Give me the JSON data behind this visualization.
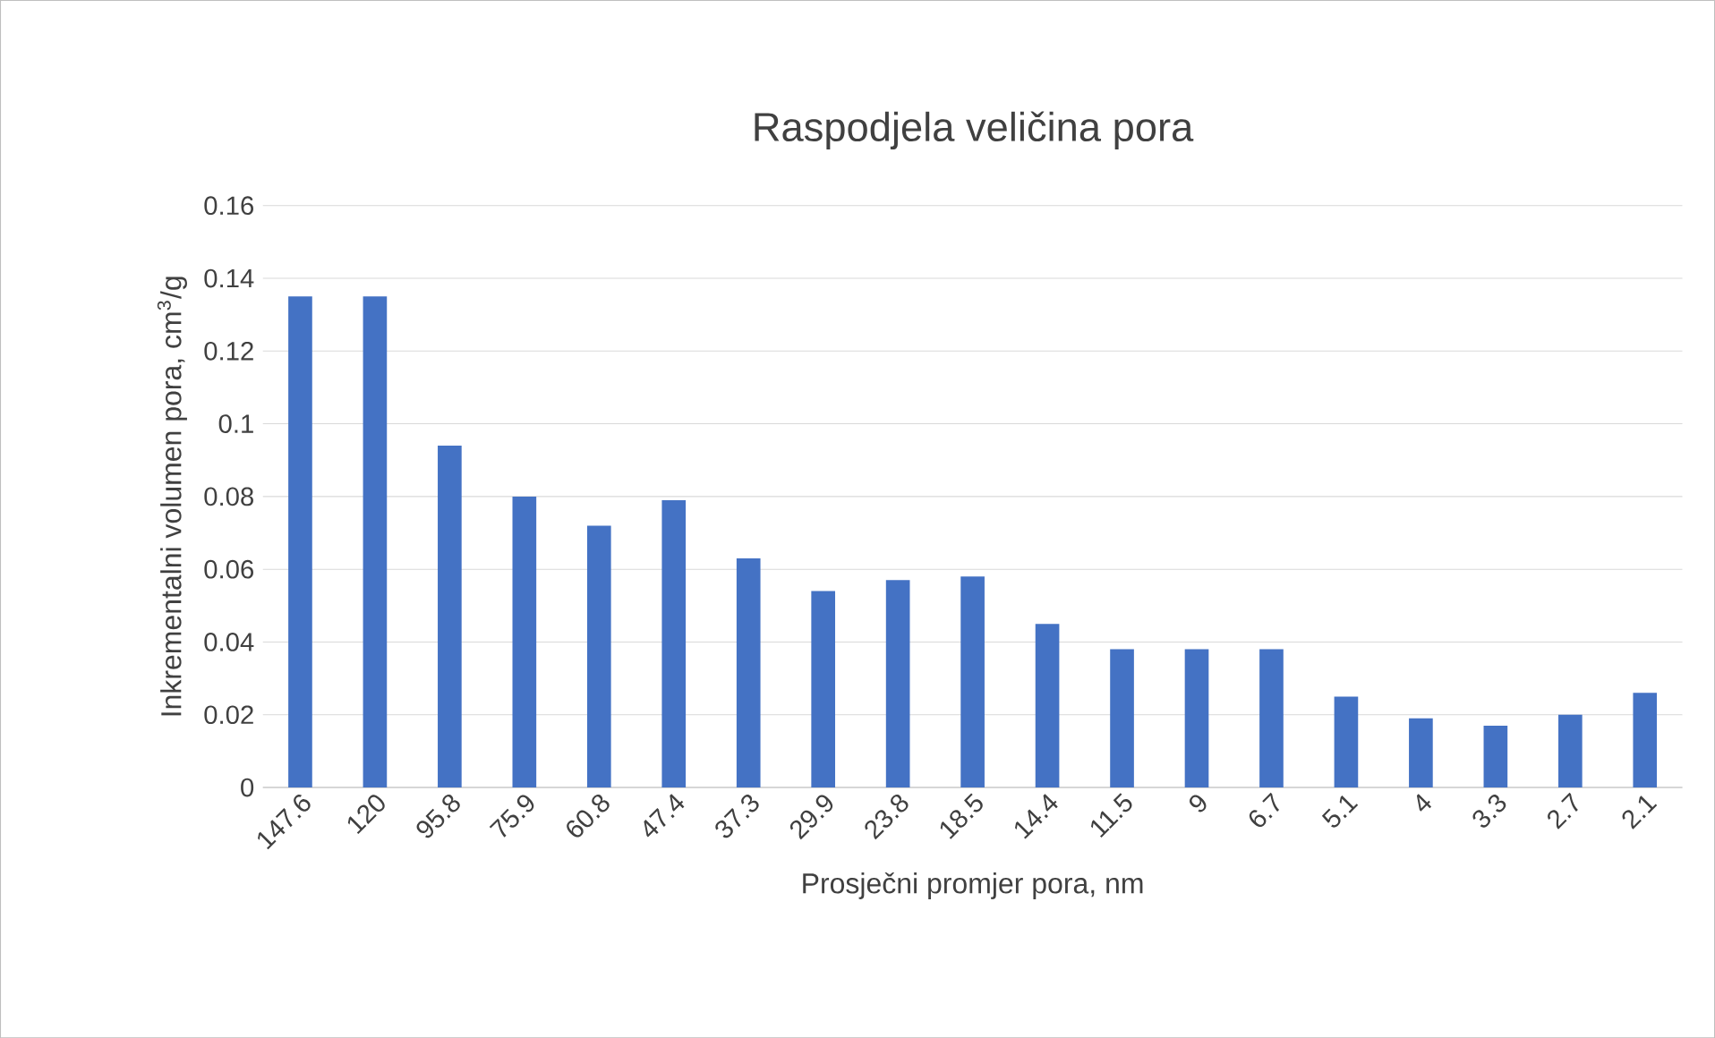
{
  "chart_data": {
    "type": "bar",
    "title": "Raspodjela veličina pora",
    "xlabel": "Prosječni promjer pora, nm",
    "ylabel": "Inkrementalni volumen pora, cm$^{3}$/g",
    "categories": [
      "147.6",
      "120",
      "95.8",
      "75.9",
      "60.8",
      "47.4",
      "37.3",
      "29.9",
      "23.8",
      "18.5",
      "14.4",
      "11.5",
      "9",
      "6.7",
      "5.1",
      "4",
      "3.3",
      "2.7",
      "2.1"
    ],
    "values": [
      0.135,
      0.135,
      0.094,
      0.08,
      0.072,
      0.079,
      0.063,
      0.054,
      0.057,
      0.058,
      0.045,
      0.038,
      0.038,
      0.038,
      0.025,
      0.019,
      0.017,
      0.02,
      0.026
    ],
    "color": "#4472c4",
    "ylim": [
      0,
      0.16
    ],
    "yticks": [
      0,
      0.02,
      0.04,
      0.06,
      0.08,
      0.1,
      0.12,
      0.14,
      0.16
    ],
    "grid": "y"
  }
}
